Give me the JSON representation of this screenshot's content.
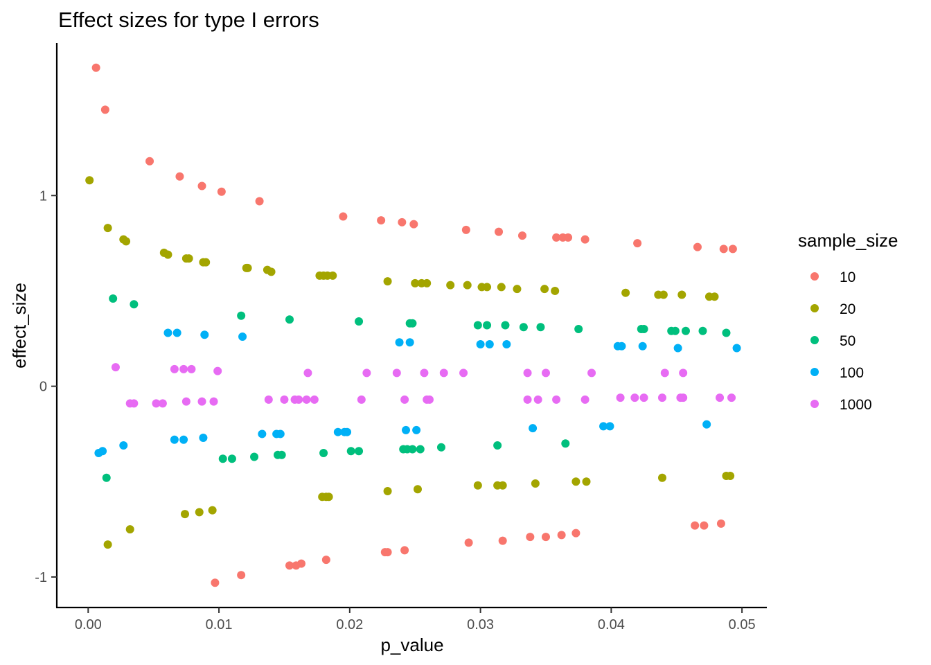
{
  "chart_data": {
    "type": "scatter",
    "title": "Effect sizes for type I errors",
    "xlabel": "p_value",
    "ylabel": "effect_size",
    "xlim": [
      -0.0024,
      0.0519
    ],
    "ylim": [
      -1.16,
      1.8
    ],
    "x_ticks": [
      {
        "value": 0.0,
        "label": "0.00"
      },
      {
        "value": 0.01,
        "label": "0.01"
      },
      {
        "value": 0.02,
        "label": "0.02"
      },
      {
        "value": 0.03,
        "label": "0.03"
      },
      {
        "value": 0.04,
        "label": "0.04"
      },
      {
        "value": 0.05,
        "label": "0.05"
      }
    ],
    "y_ticks": [
      {
        "value": 1,
        "label": "1"
      },
      {
        "value": 0,
        "label": "0"
      },
      {
        "value": -1,
        "label": "-1"
      }
    ],
    "grid": false,
    "legend": {
      "title": "sample_size",
      "position": "right"
    },
    "series": [
      {
        "name": "10",
        "color": "#F8766D",
        "points": [
          [
            0.0006,
            1.67
          ],
          [
            0.0013,
            1.45
          ],
          [
            0.0047,
            1.18
          ],
          [
            0.007,
            1.1
          ],
          [
            0.0087,
            1.05
          ],
          [
            0.0102,
            1.02
          ],
          [
            0.0131,
            0.97
          ],
          [
            0.0195,
            0.89
          ],
          [
            0.0224,
            0.87
          ],
          [
            0.024,
            0.86
          ],
          [
            0.0249,
            0.85
          ],
          [
            0.0289,
            0.82
          ],
          [
            0.0314,
            0.81
          ],
          [
            0.0332,
            0.79
          ],
          [
            0.0358,
            0.78
          ],
          [
            0.0363,
            0.78
          ],
          [
            0.0367,
            0.78
          ],
          [
            0.038,
            0.77
          ],
          [
            0.042,
            0.75
          ],
          [
            0.0466,
            0.73
          ],
          [
            0.0486,
            0.72
          ],
          [
            0.0493,
            0.72
          ],
          [
            0.0097,
            -1.03
          ],
          [
            0.0117,
            -0.99
          ],
          [
            0.0154,
            -0.94
          ],
          [
            0.0159,
            -0.94
          ],
          [
            0.0163,
            -0.93
          ],
          [
            0.0182,
            -0.91
          ],
          [
            0.0227,
            -0.87
          ],
          [
            0.0229,
            -0.87
          ],
          [
            0.0242,
            -0.86
          ],
          [
            0.0291,
            -0.82
          ],
          [
            0.0317,
            -0.81
          ],
          [
            0.0338,
            -0.79
          ],
          [
            0.035,
            -0.79
          ],
          [
            0.0362,
            -0.78
          ],
          [
            0.0373,
            -0.77
          ],
          [
            0.0464,
            -0.73
          ],
          [
            0.0471,
            -0.73
          ],
          [
            0.0484,
            -0.72
          ]
        ]
      },
      {
        "name": "20",
        "color": "#A3A500",
        "points": [
          [
            0.0001,
            1.08
          ],
          [
            0.0015,
            0.83
          ],
          [
            0.0027,
            0.77
          ],
          [
            0.0029,
            0.76
          ],
          [
            0.0058,
            0.7
          ],
          [
            0.0061,
            0.69
          ],
          [
            0.0075,
            0.67
          ],
          [
            0.0077,
            0.67
          ],
          [
            0.0088,
            0.65
          ],
          [
            0.009,
            0.65
          ],
          [
            0.0121,
            0.62
          ],
          [
            0.0122,
            0.62
          ],
          [
            0.0137,
            0.61
          ],
          [
            0.014,
            0.6
          ],
          [
            0.0177,
            0.58
          ],
          [
            0.018,
            0.58
          ],
          [
            0.0183,
            0.58
          ],
          [
            0.0187,
            0.58
          ],
          [
            0.0229,
            0.55
          ],
          [
            0.025,
            0.54
          ],
          [
            0.0255,
            0.54
          ],
          [
            0.0259,
            0.54
          ],
          [
            0.0277,
            0.53
          ],
          [
            0.029,
            0.53
          ],
          [
            0.0301,
            0.52
          ],
          [
            0.0305,
            0.52
          ],
          [
            0.0316,
            0.52
          ],
          [
            0.0328,
            0.51
          ],
          [
            0.0349,
            0.51
          ],
          [
            0.0357,
            0.5
          ],
          [
            0.0411,
            0.49
          ],
          [
            0.0436,
            0.48
          ],
          [
            0.044,
            0.48
          ],
          [
            0.0454,
            0.48
          ],
          [
            0.0475,
            0.47
          ],
          [
            0.0479,
            0.47
          ],
          [
            0.0015,
            -0.83
          ],
          [
            0.0032,
            -0.75
          ],
          [
            0.0074,
            -0.67
          ],
          [
            0.0085,
            -0.66
          ],
          [
            0.0095,
            -0.65
          ],
          [
            0.0179,
            -0.58
          ],
          [
            0.0182,
            -0.58
          ],
          [
            0.0184,
            -0.58
          ],
          [
            0.0229,
            -0.55
          ],
          [
            0.0252,
            -0.54
          ],
          [
            0.0298,
            -0.52
          ],
          [
            0.0313,
            -0.52
          ],
          [
            0.0317,
            -0.52
          ],
          [
            0.0342,
            -0.51
          ],
          [
            0.0373,
            -0.5
          ],
          [
            0.0381,
            -0.5
          ],
          [
            0.0439,
            -0.48
          ],
          [
            0.0488,
            -0.47
          ],
          [
            0.0491,
            -0.47
          ]
        ]
      },
      {
        "name": "50",
        "color": "#00BF7D",
        "points": [
          [
            0.0019,
            0.46
          ],
          [
            0.0035,
            0.43
          ],
          [
            0.0117,
            0.37
          ],
          [
            0.0154,
            0.35
          ],
          [
            0.0207,
            0.34
          ],
          [
            0.0246,
            0.33
          ],
          [
            0.0248,
            0.33
          ],
          [
            0.0298,
            0.32
          ],
          [
            0.0305,
            0.32
          ],
          [
            0.0319,
            0.32
          ],
          [
            0.0333,
            0.31
          ],
          [
            0.0346,
            0.31
          ],
          [
            0.0375,
            0.3
          ],
          [
            0.0423,
            0.3
          ],
          [
            0.0425,
            0.3
          ],
          [
            0.0446,
            0.29
          ],
          [
            0.0449,
            0.29
          ],
          [
            0.0457,
            0.29
          ],
          [
            0.047,
            0.29
          ],
          [
            0.0488,
            0.28
          ],
          [
            0.0014,
            -0.48
          ],
          [
            0.0103,
            -0.38
          ],
          [
            0.011,
            -0.38
          ],
          [
            0.0127,
            -0.37
          ],
          [
            0.0145,
            -0.36
          ],
          [
            0.0148,
            -0.36
          ],
          [
            0.018,
            -0.35
          ],
          [
            0.0201,
            -0.34
          ],
          [
            0.0207,
            -0.34
          ],
          [
            0.0241,
            -0.33
          ],
          [
            0.0244,
            -0.33
          ],
          [
            0.0248,
            -0.33
          ],
          [
            0.0254,
            -0.33
          ],
          [
            0.027,
            -0.32
          ],
          [
            0.0313,
            -0.31
          ],
          [
            0.0365,
            -0.3
          ]
        ]
      },
      {
        "name": "100",
        "color": "#00B0F6",
        "points": [
          [
            0.0061,
            0.28
          ],
          [
            0.0068,
            0.28
          ],
          [
            0.0089,
            0.27
          ],
          [
            0.0118,
            0.26
          ],
          [
            0.0238,
            0.23
          ],
          [
            0.0246,
            0.23
          ],
          [
            0.03,
            0.22
          ],
          [
            0.0307,
            0.22
          ],
          [
            0.032,
            0.22
          ],
          [
            0.0405,
            0.21
          ],
          [
            0.0408,
            0.21
          ],
          [
            0.0424,
            0.21
          ],
          [
            0.0451,
            0.2
          ],
          [
            0.0496,
            0.2
          ],
          [
            0.0008,
            -0.35
          ],
          [
            0.0011,
            -0.34
          ],
          [
            0.0027,
            -0.31
          ],
          [
            0.0066,
            -0.28
          ],
          [
            0.0073,
            -0.28
          ],
          [
            0.0088,
            -0.27
          ],
          [
            0.0133,
            -0.25
          ],
          [
            0.0144,
            -0.25
          ],
          [
            0.0147,
            -0.25
          ],
          [
            0.0191,
            -0.24
          ],
          [
            0.0196,
            -0.24
          ],
          [
            0.0198,
            -0.24
          ],
          [
            0.0243,
            -0.23
          ],
          [
            0.0251,
            -0.23
          ],
          [
            0.034,
            -0.22
          ],
          [
            0.0394,
            -0.21
          ],
          [
            0.0399,
            -0.21
          ],
          [
            0.0473,
            -0.2
          ]
        ]
      },
      {
        "name": "1000",
        "color": "#E76BF3",
        "points": [
          [
            0.0021,
            0.1
          ],
          [
            0.0066,
            0.09
          ],
          [
            0.0073,
            0.09
          ],
          [
            0.0079,
            0.09
          ],
          [
            0.0099,
            0.08
          ],
          [
            0.0168,
            0.07
          ],
          [
            0.0213,
            0.07
          ],
          [
            0.0236,
            0.07
          ],
          [
            0.0257,
            0.07
          ],
          [
            0.0272,
            0.07
          ],
          [
            0.0287,
            0.07
          ],
          [
            0.0336,
            0.07
          ],
          [
            0.035,
            0.07
          ],
          [
            0.0385,
            0.07
          ],
          [
            0.0441,
            0.07
          ],
          [
            0.0455,
            0.07
          ],
          [
            0.0032,
            -0.09
          ],
          [
            0.0035,
            -0.09
          ],
          [
            0.0052,
            -0.09
          ],
          [
            0.0057,
            -0.09
          ],
          [
            0.0075,
            -0.08
          ],
          [
            0.0087,
            -0.08
          ],
          [
            0.0096,
            -0.08
          ],
          [
            0.0138,
            -0.07
          ],
          [
            0.015,
            -0.07
          ],
          [
            0.0158,
            -0.07
          ],
          [
            0.0161,
            -0.07
          ],
          [
            0.0167,
            -0.07
          ],
          [
            0.0173,
            -0.07
          ],
          [
            0.0209,
            -0.07
          ],
          [
            0.0242,
            -0.07
          ],
          [
            0.0259,
            -0.07
          ],
          [
            0.0261,
            -0.07
          ],
          [
            0.0336,
            -0.07
          ],
          [
            0.0344,
            -0.07
          ],
          [
            0.0358,
            -0.07
          ],
          [
            0.038,
            -0.07
          ],
          [
            0.0407,
            -0.06
          ],
          [
            0.0418,
            -0.06
          ],
          [
            0.0425,
            -0.06
          ],
          [
            0.0439,
            -0.06
          ],
          [
            0.0453,
            -0.06
          ],
          [
            0.0455,
            -0.06
          ],
          [
            0.0483,
            -0.06
          ],
          [
            0.0492,
            -0.06
          ]
        ]
      }
    ]
  }
}
